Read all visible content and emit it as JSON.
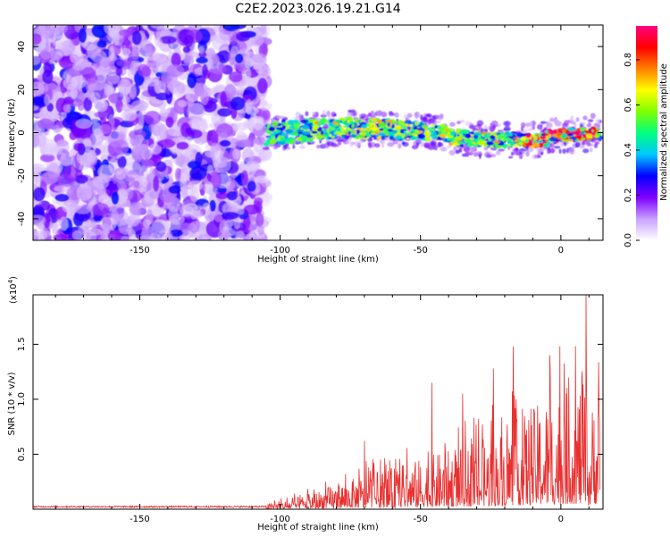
{
  "figure": {
    "title": "C2E2.2023.026.19.21.G14"
  },
  "chart_data": [
    {
      "type": "heatmap",
      "title": "C2E2.2023.026.19.21.G14",
      "xlabel": "Height of straight line (km)",
      "ylabel": "Frequency (Hz)",
      "xlim": [
        -188,
        15
      ],
      "ylim": [
        -50,
        50
      ],
      "xticks": [
        -150,
        -100,
        -50,
        0
      ],
      "yticks": [
        -40,
        -20,
        0,
        20,
        40
      ],
      "grid": false,
      "description_of_data": {
        "noise_region_x": [
          -188,
          -105
        ],
        "noise_region_amplitude": [
          0.05,
          0.3
        ],
        "ridge_x": [
          -105,
          14
        ],
        "ridge_frequency_start": 0,
        "ridge_frequency_end": 0,
        "ridge_peak_amplitude": [
          0.25,
          1.0
        ]
      },
      "colorbar": {
        "label": "Normalized spectral amplitude",
        "range": [
          0.0,
          0.95
        ],
        "ticks": [
          0.0,
          0.2,
          0.4,
          0.6,
          0.8
        ],
        "colormap": [
          "#ffffff",
          "#c8a0ff",
          "#8000ff",
          "#0000ff",
          "#00c8ff",
          "#00ff80",
          "#80ff00",
          "#ffff00",
          "#ff8000",
          "#ff0000",
          "#ff0080"
        ]
      }
    },
    {
      "type": "line",
      "xlabel": "Height of straight line (km)",
      "ylabel": "SNR (10 * v/v)",
      "y_multiplier_label": "(x10",
      "y_multiplier_exp": "4",
      "xlim": [
        -188,
        15
      ],
      "ylim": [
        0,
        1.95
      ],
      "xticks": [
        -150,
        -100,
        -50,
        0
      ],
      "yticks": [
        0.5,
        1.0,
        1.5
      ],
      "color": "#e83030",
      "series": [
        {
          "x": [
            -188,
            -170,
            -150,
            -130,
            -110,
            -100,
            -90,
            -80,
            -70,
            -60,
            -50,
            -40,
            -30,
            -20,
            -10,
            -5,
            0,
            5,
            8,
            10,
            12,
            14
          ],
          "y": [
            0.02,
            0.02,
            0.02,
            0.02,
            0.03,
            0.06,
            0.12,
            0.2,
            0.27,
            0.33,
            0.4,
            0.47,
            0.53,
            0.65,
            0.8,
            0.9,
            0.95,
            1.0,
            1.05,
            0.6,
            1.0,
            0.9
          ]
        }
      ],
      "peaks": [
        {
          "x": 9,
          "y": 1.95
        },
        {
          "x": -17,
          "y": 1.48
        },
        {
          "x": -24,
          "y": 1.28
        },
        {
          "x": -4,
          "y": 1.4
        },
        {
          "x": -35,
          "y": 1.05
        },
        {
          "x": -46,
          "y": 1.15
        },
        {
          "x": -70,
          "y": 0.62
        },
        {
          "x": 14,
          "y": 1.05
        }
      ]
    }
  ]
}
